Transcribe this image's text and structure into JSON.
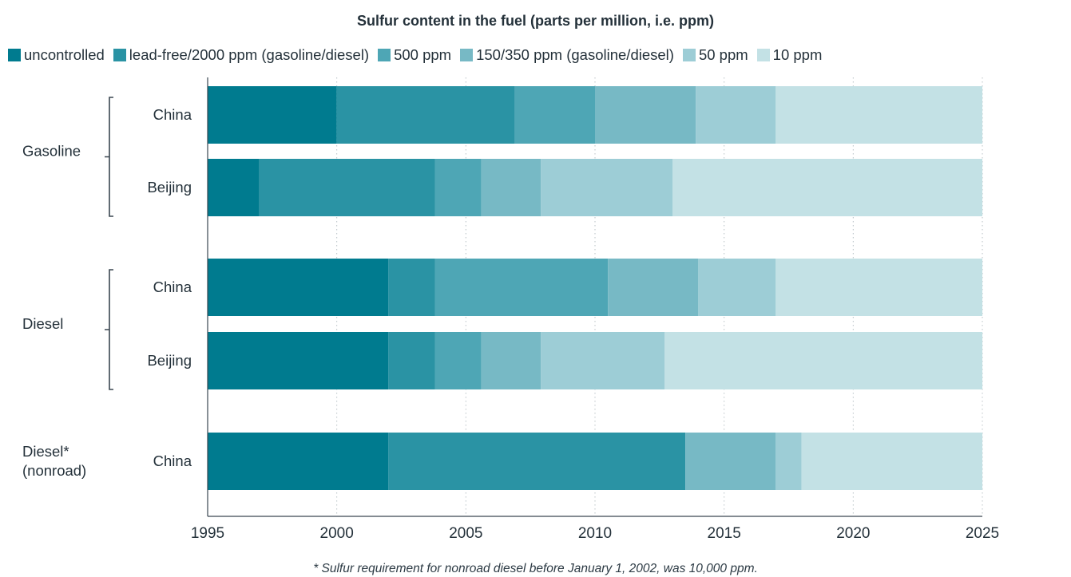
{
  "chart_data": {
    "type": "bar",
    "orientation": "horizontal",
    "stacked": true,
    "title": "Sulfur content in the fuel (parts per million, i.e. ppm)",
    "footnote": "* Sulfur requirement for nonroad diesel before January 1, 2002, was 10,000 ppm.",
    "xlim": [
      1995,
      2025
    ],
    "x_ticks": [
      1995,
      2000,
      2005,
      2010,
      2015,
      2020,
      2025
    ],
    "grid": "vertical dotted",
    "legend_position": "top",
    "series": [
      {
        "name": "uncontrolled",
        "color": "#007B8F"
      },
      {
        "name": "lead-free/2000 ppm (gasoline/diesel)",
        "color": "#2A93A4"
      },
      {
        "name": "500 ppm",
        "color": "#4EA6B5"
      },
      {
        "name": "150/350 ppm (gasoline/diesel)",
        "color": "#77B9C5"
      },
      {
        "name": "50 ppm",
        "color": "#9DCDD6"
      },
      {
        "name": "10 ppm",
        "color": "#C3E1E5"
      }
    ],
    "groups": [
      {
        "label": "Gasoline",
        "bracket": true,
        "rows": [
          {
            "label": "China",
            "segments": [
              1995,
              2000,
              2006.9,
              2010,
              2013.9,
              2017,
              2025
            ]
          },
          {
            "label": "Beijing",
            "segments": [
              1995,
              1997,
              2003.8,
              2005.6,
              2007.9,
              2013,
              2025
            ]
          }
        ]
      },
      {
        "label": "Diesel",
        "bracket": true,
        "rows": [
          {
            "label": "China",
            "segments": [
              1995,
              2002,
              2003.8,
              2010.5,
              2014,
              2017,
              2025
            ]
          },
          {
            "label": "Beijing",
            "segments": [
              1995,
              2002,
              2003.8,
              2005.6,
              2007.9,
              2012.7,
              2025
            ]
          }
        ]
      },
      {
        "label": "Diesel*\n(nonroad)",
        "bracket": false,
        "rows": [
          {
            "label": "China",
            "segments": [
              1995,
              2002,
              2013.5,
              2013.5,
              2017,
              2018,
              2025
            ]
          }
        ]
      }
    ]
  }
}
